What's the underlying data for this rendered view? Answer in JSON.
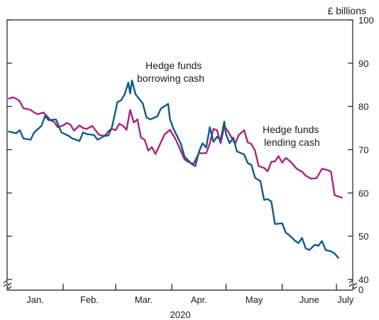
{
  "chart_data": {
    "type": "line",
    "unit_label": "£ billions",
    "xlabel": "2020",
    "x_domain": [
      "2020-01-01",
      "2020-07-10"
    ],
    "month_labels": [
      "Jan.",
      "Feb.",
      "Mar.",
      "Apr.",
      "May",
      "June",
      "July"
    ],
    "y_ticks": [
      40,
      50,
      60,
      70,
      80,
      90,
      100
    ],
    "y_zero_label": "0",
    "ylim": [
      40,
      100
    ],
    "axis_break": true,
    "annotations": [
      "Hedge funds borrowing cash",
      "Hedge funds lending cash"
    ],
    "series": [
      {
        "name": "Hedge funds borrowing cash",
        "color": "#0e5a87",
        "points": [
          [
            "2020-01-02",
            74.2
          ],
          [
            "2020-01-06",
            73.8
          ],
          [
            "2020-01-08",
            74.5
          ],
          [
            "2020-01-10",
            72.6
          ],
          [
            "2020-01-14",
            72.3
          ],
          [
            "2020-01-16",
            74.0
          ],
          [
            "2020-01-20",
            75.5
          ],
          [
            "2020-01-22",
            77.8
          ],
          [
            "2020-01-24",
            76.8
          ],
          [
            "2020-01-28",
            77.0
          ],
          [
            "2020-01-31",
            74.0
          ],
          [
            "2020-02-04",
            73.2
          ],
          [
            "2020-02-06",
            72.6
          ],
          [
            "2020-02-10",
            72.0
          ],
          [
            "2020-02-12",
            74.0
          ],
          [
            "2020-02-14",
            73.6
          ],
          [
            "2020-02-18",
            73.4
          ],
          [
            "2020-02-20",
            72.3
          ],
          [
            "2020-02-24",
            73.2
          ],
          [
            "2020-02-26",
            73.3
          ],
          [
            "2020-02-28",
            75.3
          ],
          [
            "2020-03-02",
            81.0
          ],
          [
            "2020-03-04",
            81.4
          ],
          [
            "2020-03-06",
            82.8
          ],
          [
            "2020-03-08",
            85.5
          ],
          [
            "2020-03-09",
            83.0
          ],
          [
            "2020-03-10",
            86.0
          ],
          [
            "2020-03-12",
            82.8
          ],
          [
            "2020-03-16",
            80.7
          ],
          [
            "2020-03-18",
            77.5
          ],
          [
            "2020-03-20",
            77.0
          ],
          [
            "2020-03-24",
            77.7
          ],
          [
            "2020-03-26",
            79.5
          ],
          [
            "2020-03-30",
            80.6
          ],
          [
            "2020-03-31",
            77.0
          ],
          [
            "2020-04-02",
            74.8
          ],
          [
            "2020-04-06",
            71.4
          ],
          [
            "2020-04-08",
            68.4
          ],
          [
            "2020-04-12",
            66.7
          ],
          [
            "2020-04-14",
            66.2
          ],
          [
            "2020-04-16",
            69.5
          ],
          [
            "2020-04-18",
            71.5
          ],
          [
            "2020-04-20",
            70.5
          ],
          [
            "2020-04-22",
            75.2
          ],
          [
            "2020-04-24",
            71.8
          ],
          [
            "2020-04-26",
            73.0
          ],
          [
            "2020-04-28",
            72.2
          ],
          [
            "2020-04-30",
            76.5
          ],
          [
            "2020-05-01",
            73.5
          ],
          [
            "2020-05-03",
            71.5
          ],
          [
            "2020-05-05",
            72.8
          ],
          [
            "2020-05-07",
            69.6
          ],
          [
            "2020-05-11",
            68.9
          ],
          [
            "2020-05-13",
            66.9
          ],
          [
            "2020-05-15",
            66.5
          ],
          [
            "2020-05-17",
            63.5
          ],
          [
            "2020-05-20",
            62.7
          ],
          [
            "2020-05-22",
            58.4
          ],
          [
            "2020-05-24",
            58.6
          ],
          [
            "2020-05-26",
            58.0
          ],
          [
            "2020-05-28",
            52.8
          ],
          [
            "2020-06-01",
            53.0
          ],
          [
            "2020-06-03",
            50.8
          ],
          [
            "2020-06-05",
            50.2
          ],
          [
            "2020-06-08",
            49.0
          ],
          [
            "2020-06-10",
            48.4
          ],
          [
            "2020-06-12",
            49.6
          ],
          [
            "2020-06-14",
            47.2
          ],
          [
            "2020-06-16",
            46.8
          ],
          [
            "2020-06-19",
            48.0
          ],
          [
            "2020-06-21",
            47.8
          ],
          [
            "2020-06-23",
            48.9
          ],
          [
            "2020-06-25",
            46.8
          ],
          [
            "2020-06-28",
            46.5
          ],
          [
            "2020-06-30",
            46.0
          ],
          [
            "2020-07-02",
            45.0
          ]
        ]
      },
      {
        "name": "Hedge funds lending cash",
        "color": "#a8247e",
        "points": [
          [
            "2020-01-02",
            81.8
          ],
          [
            "2020-01-04",
            82.1
          ],
          [
            "2020-01-06",
            81.8
          ],
          [
            "2020-01-08",
            81.2
          ],
          [
            "2020-01-10",
            79.6
          ],
          [
            "2020-01-12",
            79.4
          ],
          [
            "2020-01-14",
            79.2
          ],
          [
            "2020-01-16",
            78.6
          ],
          [
            "2020-01-18",
            78.2
          ],
          [
            "2020-01-21",
            78.6
          ],
          [
            "2020-01-23",
            77.8
          ],
          [
            "2020-01-25",
            76.8
          ],
          [
            "2020-01-27",
            76.4
          ],
          [
            "2020-01-29",
            75.2
          ],
          [
            "2020-02-01",
            75.6
          ],
          [
            "2020-02-03",
            76.2
          ],
          [
            "2020-02-05",
            75.8
          ],
          [
            "2020-02-07",
            74.4
          ],
          [
            "2020-02-10",
            75.6
          ],
          [
            "2020-02-12",
            75.0
          ],
          [
            "2020-02-14",
            74.8
          ],
          [
            "2020-02-17",
            75.5
          ],
          [
            "2020-02-19",
            74.4
          ],
          [
            "2020-02-21",
            73.4
          ],
          [
            "2020-02-24",
            73.2
          ],
          [
            "2020-02-26",
            74.3
          ],
          [
            "2020-02-28",
            74.8
          ],
          [
            "2020-03-01",
            74.5
          ],
          [
            "2020-03-03",
            76.0
          ],
          [
            "2020-03-05",
            75.5
          ],
          [
            "2020-03-07",
            74.6
          ],
          [
            "2020-03-09",
            79.2
          ],
          [
            "2020-03-11",
            76.3
          ],
          [
            "2020-03-13",
            77.0
          ],
          [
            "2020-03-15",
            72.8
          ],
          [
            "2020-03-17",
            72.3
          ],
          [
            "2020-03-19",
            69.8
          ],
          [
            "2020-03-21",
            70.6
          ],
          [
            "2020-03-23",
            69.0
          ],
          [
            "2020-03-25",
            70.8
          ],
          [
            "2020-03-28",
            73.5
          ],
          [
            "2020-03-31",
            74.6
          ],
          [
            "2020-04-03",
            72.5
          ],
          [
            "2020-04-05",
            70.7
          ],
          [
            "2020-04-08",
            67.8
          ],
          [
            "2020-04-10",
            67.2
          ],
          [
            "2020-04-13",
            66.7
          ],
          [
            "2020-04-16",
            69.2
          ],
          [
            "2020-04-20",
            69.2
          ],
          [
            "2020-04-22",
            71.4
          ],
          [
            "2020-04-24",
            74.8
          ],
          [
            "2020-04-26",
            74.5
          ],
          [
            "2020-04-28",
            71.5
          ],
          [
            "2020-04-30",
            75.4
          ],
          [
            "2020-05-02",
            74.3
          ],
          [
            "2020-05-04",
            72.8
          ],
          [
            "2020-05-06",
            71.4
          ],
          [
            "2020-05-08",
            73.4
          ],
          [
            "2020-05-11",
            74.5
          ],
          [
            "2020-05-13",
            71.7
          ],
          [
            "2020-05-15",
            71.3
          ],
          [
            "2020-05-17",
            69.8
          ],
          [
            "2020-05-19",
            66.2
          ],
          [
            "2020-05-22",
            65.8
          ],
          [
            "2020-05-24",
            65.0
          ],
          [
            "2020-05-26",
            67.2
          ],
          [
            "2020-05-28",
            67.3
          ],
          [
            "2020-05-30",
            68.5
          ],
          [
            "2020-06-01",
            67.0
          ],
          [
            "2020-06-03",
            68.1
          ],
          [
            "2020-06-06",
            67.1
          ],
          [
            "2020-06-09",
            65.6
          ],
          [
            "2020-06-12",
            64.9
          ],
          [
            "2020-06-14",
            64.0
          ],
          [
            "2020-06-17",
            63.3
          ],
          [
            "2020-06-20",
            63.4
          ],
          [
            "2020-06-23",
            65.6
          ],
          [
            "2020-06-26",
            65.3
          ],
          [
            "2020-06-28",
            64.9
          ],
          [
            "2020-06-30",
            59.5
          ],
          [
            "2020-07-02",
            59.2
          ],
          [
            "2020-07-04",
            58.9
          ]
        ]
      }
    ]
  }
}
